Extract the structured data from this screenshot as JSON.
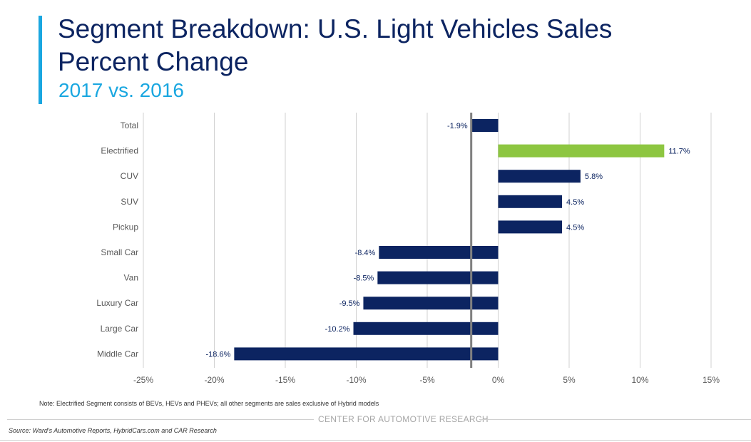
{
  "header": {
    "title": "Segment Breakdown: U.S. Light Vehicles Sales Percent Change",
    "subtitle": "2017 vs. 2016"
  },
  "colors": {
    "accent": "#1aa7e0",
    "navy": "#0c2461",
    "bar": "#0c2461",
    "highlight": "#8dc641",
    "grid": "#d0d0d0",
    "reference_line": "#808080"
  },
  "chart_data": {
    "type": "bar",
    "orientation": "horizontal",
    "title": "Segment Breakdown: U.S. Light Vehicles Sales Percent Change",
    "subtitle": "2017 vs. 2016",
    "categories": [
      "Total",
      "Electrified",
      "CUV",
      "SUV",
      "Pickup",
      "Small Car",
      "Van",
      "Luxury Car",
      "Large Car",
      "Middle Car"
    ],
    "values": [
      -1.9,
      11.7,
      5.8,
      4.5,
      4.5,
      -8.4,
      -8.5,
      -9.5,
      -10.2,
      -18.6
    ],
    "value_labels": [
      "-1.9%",
      "11.7%",
      "5.8%",
      "4.5%",
      "4.5%",
      "-8.4%",
      "-8.5%",
      "-9.5%",
      "-10.2%",
      "-18.6%"
    ],
    "highlight_category": "Electrified",
    "xlim": [
      -25,
      15
    ],
    "xticks": [
      -25,
      -20,
      -15,
      -10,
      -5,
      0,
      5,
      10,
      15
    ],
    "xtick_labels": [
      "-25%",
      "-20%",
      "-15%",
      "-10%",
      "-5%",
      "0%",
      "5%",
      "10%",
      "15%"
    ],
    "reference_value": -1.9,
    "grid": true,
    "legend": "none",
    "xlabel": "",
    "ylabel": ""
  },
  "footer": {
    "note": "Note: Electrified Segment consists of BEVs, HEVs and PHEVs; all other segments are sales exclusive of Hybrid models",
    "org": "CENTER FOR AUTOMOTIVE RESEARCH",
    "source": "Source:  Ward's Automotive Reports, HybridCars.com and CAR Research"
  }
}
